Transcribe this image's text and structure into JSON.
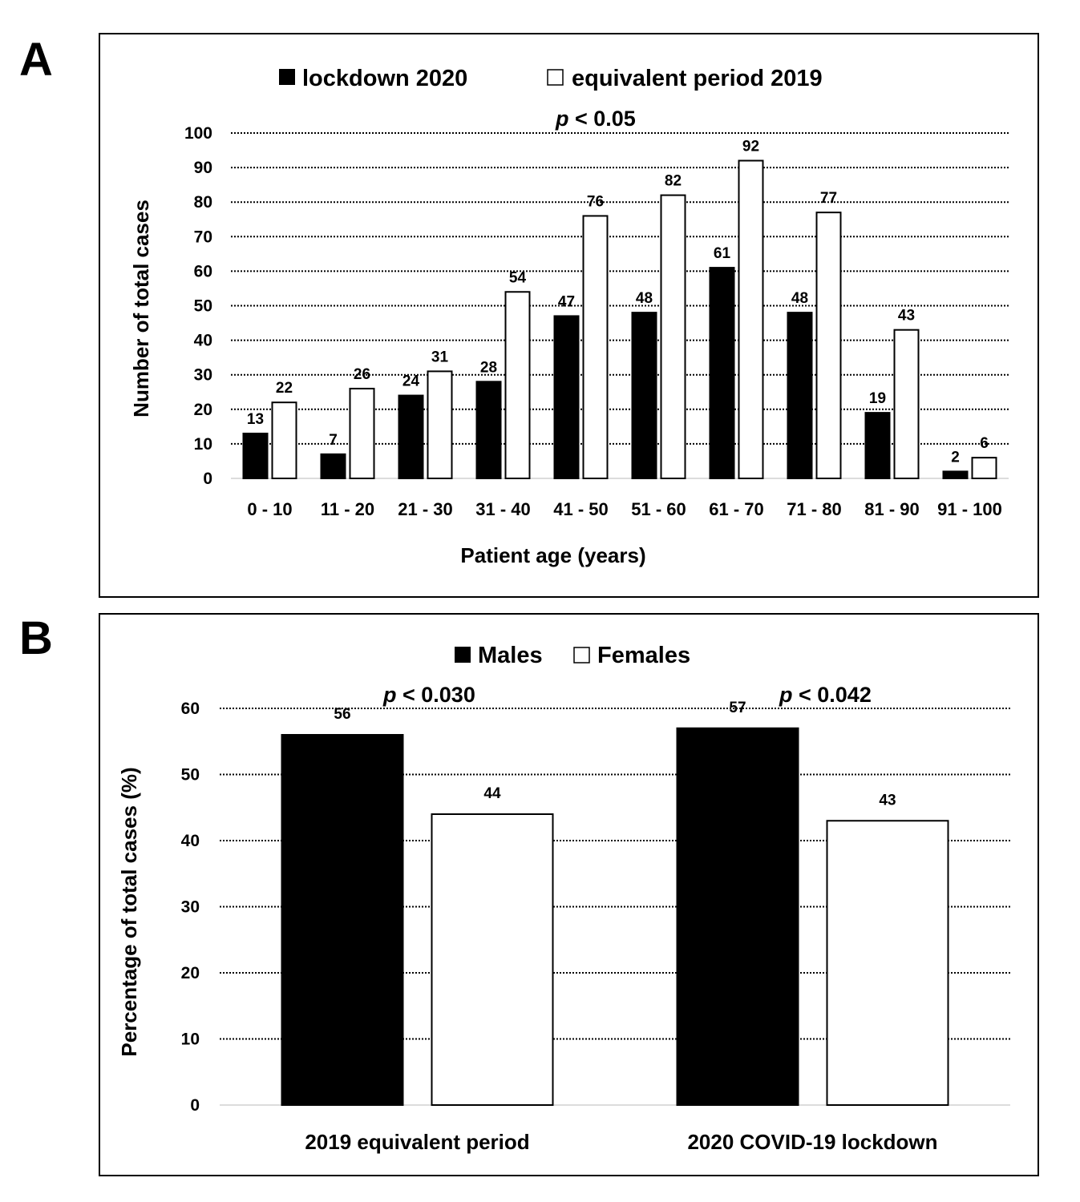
{
  "panels": {
    "a": {
      "letter": "A",
      "p_prefix": "p",
      "p_rest": " < 0.05"
    },
    "b": {
      "letter": "B",
      "p_values": [
        {
          "prefix": "p",
          "rest": " < 0.030"
        },
        {
          "prefix": "p",
          "rest": " < 0.042"
        }
      ]
    }
  },
  "chart_data": [
    {
      "type": "bar",
      "categories": [
        "0 - 10",
        "11 - 20",
        "21 - 30",
        "31 - 40",
        "41 - 50",
        "51 - 60",
        "61 - 70",
        "71 - 80",
        "81 - 90",
        "91 - 100"
      ],
      "series": [
        {
          "name": "lockdown 2020",
          "values": [
            13,
            7,
            24,
            28,
            47,
            48,
            61,
            48,
            19,
            2
          ],
          "color": "#000000"
        },
        {
          "name": "equivalent period 2019",
          "values": [
            22,
            26,
            31,
            54,
            76,
            82,
            92,
            77,
            43,
            6
          ],
          "color": "#ffffff"
        }
      ],
      "xlabel": "Patient age (years)",
      "ylabel": "Number of total cases",
      "ylim": [
        0,
        100
      ],
      "yticks": [
        0,
        10,
        20,
        30,
        40,
        50,
        60,
        70,
        80,
        90,
        100
      ],
      "grid": true,
      "legend": "top-center",
      "annotation": "p < 0.05"
    },
    {
      "type": "bar",
      "categories": [
        "2019 equivalent period",
        "2020 COVID-19 lockdown"
      ],
      "series": [
        {
          "name": "Males",
          "values": [
            56,
            57
          ],
          "color": "#000000"
        },
        {
          "name": "Females",
          "values": [
            44,
            43
          ],
          "color": "#ffffff"
        }
      ],
      "xlabel": "",
      "ylabel": "Percentage of total cases (%)",
      "ylim": [
        0,
        60
      ],
      "yticks": [
        0,
        10,
        20,
        30,
        40,
        50,
        60
      ],
      "grid": true,
      "legend": "top-center",
      "annotations": [
        "p < 0.030",
        "p < 0.042"
      ]
    }
  ]
}
